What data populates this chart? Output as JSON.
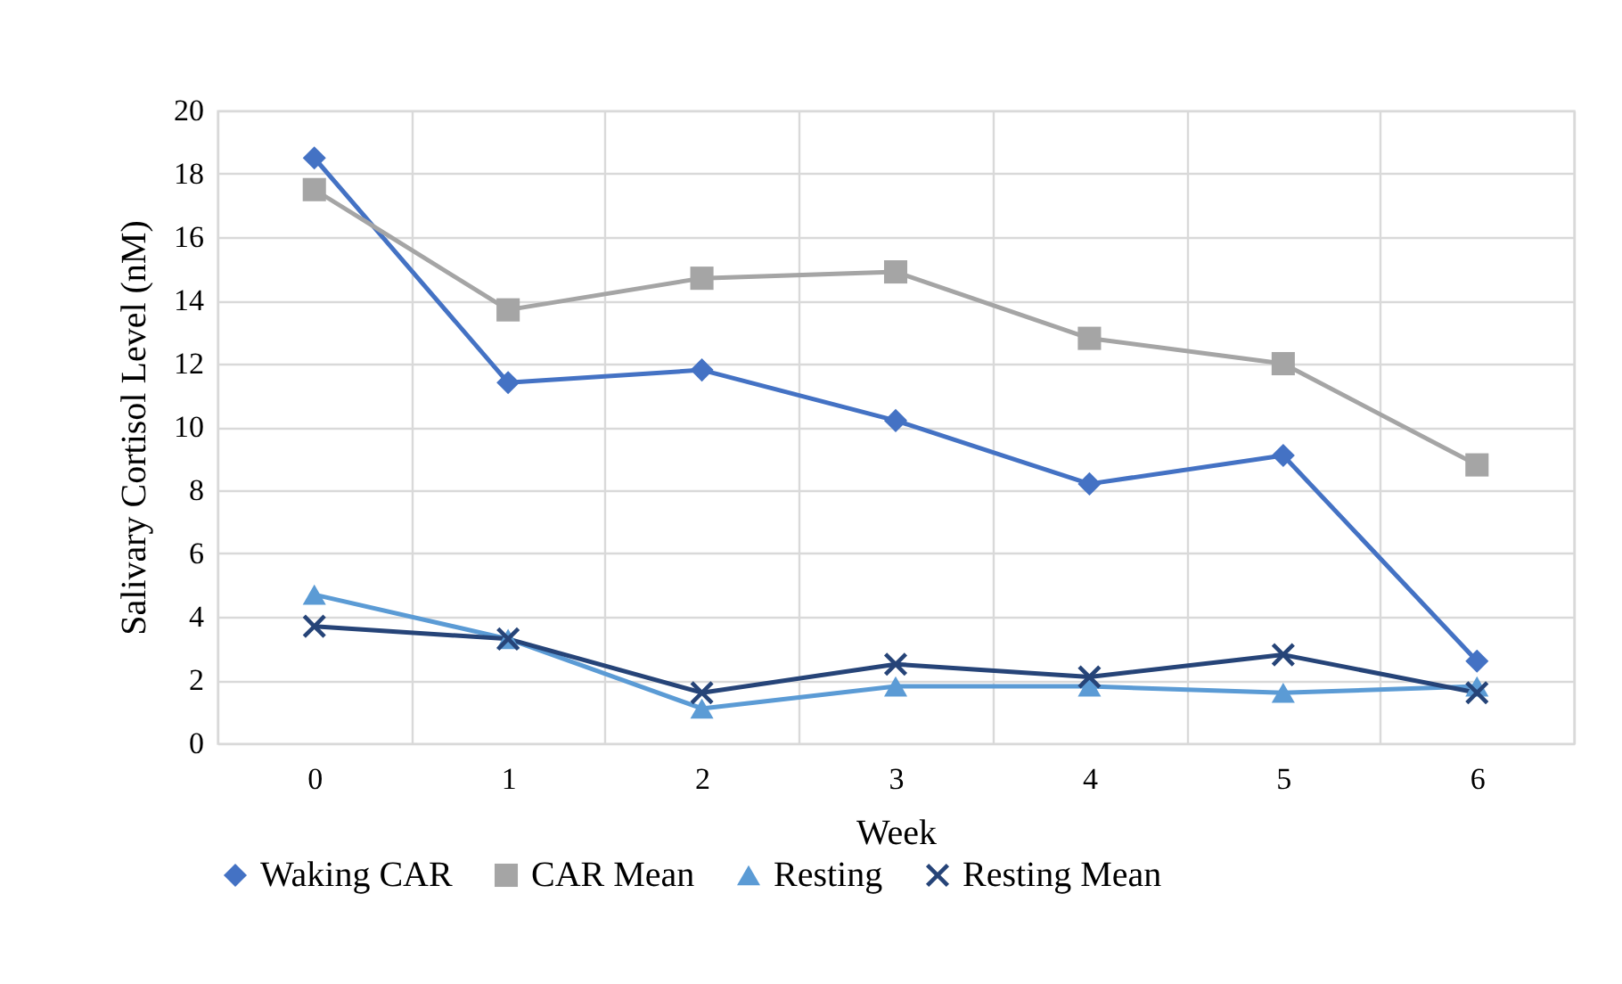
{
  "chart_data": {
    "type": "line",
    "xlabel": "Week",
    "ylabel": "Salivary Cortisol Level (nM)",
    "categories": [
      "0",
      "1",
      "2",
      "3",
      "4",
      "5",
      "6"
    ],
    "series": [
      {
        "name": "Waking CAR",
        "color": "#4472c4",
        "marker": "diamond",
        "values": [
          18.5,
          11.4,
          11.8,
          10.2,
          8.2,
          9.1,
          2.6
        ]
      },
      {
        "name": "CAR Mean",
        "color": "#a5a5a5",
        "marker": "square",
        "values": [
          17.5,
          13.7,
          14.7,
          14.9,
          12.8,
          12.0,
          8.8
        ]
      },
      {
        "name": "Resting",
        "color": "#5b9bd5",
        "marker": "triangle",
        "values": [
          4.7,
          3.3,
          1.1,
          1.8,
          1.8,
          1.6,
          1.8
        ]
      },
      {
        "name": "Resting Mean",
        "color": "#264478",
        "marker": "cross",
        "values": [
          3.7,
          3.3,
          1.6,
          2.5,
          2.1,
          2.8,
          1.6
        ]
      }
    ],
    "ylim": [
      0,
      20
    ],
    "yticks": [
      0,
      2,
      4,
      6,
      8,
      10,
      12,
      14,
      16,
      18,
      20
    ],
    "grid": true,
    "legend": "bottom"
  }
}
